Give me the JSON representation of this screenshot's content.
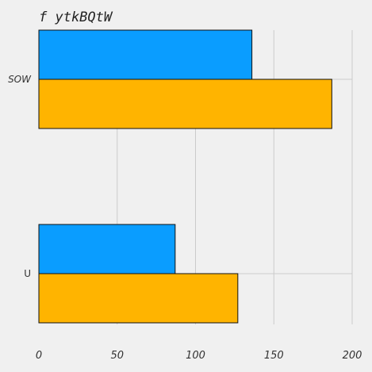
{
  "chart_data": {
    "type": "bar",
    "orientation": "horizontal",
    "title": "f ytkBQtW",
    "categories": [
      "SOW",
      "U"
    ],
    "series": [
      {
        "values": [
          136,
          87
        ],
        "color": "#0a9dff"
      },
      {
        "values": [
          187,
          127
        ],
        "color": "#ffb400"
      }
    ],
    "xlim": [
      0,
      200
    ],
    "xticks": [
      0,
      50,
      100,
      150,
      200
    ],
    "grid": true,
    "legend": "none"
  }
}
